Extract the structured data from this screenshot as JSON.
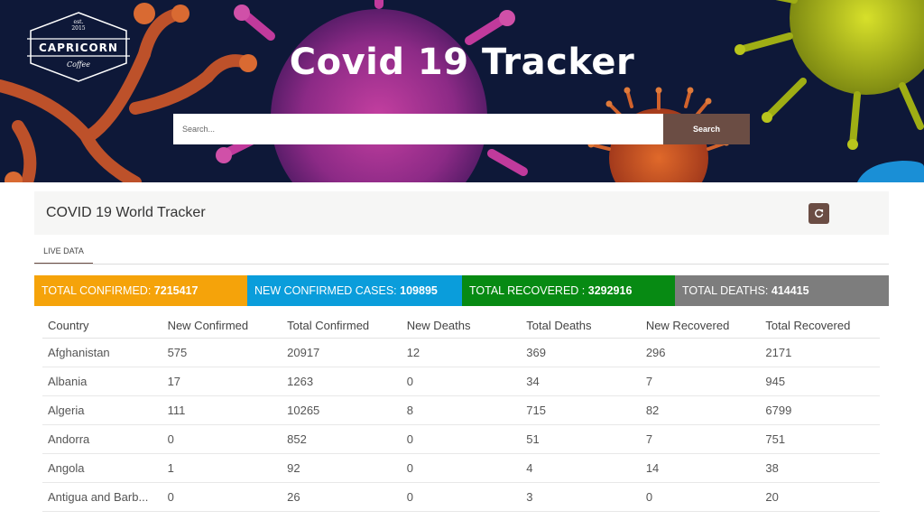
{
  "logo": {
    "est": "est.",
    "year": "2015",
    "name": "CAPRICORN",
    "sub": "Coffee"
  },
  "hero": {
    "title": "Covid 19 Tracker",
    "search_placeholder": "Search...",
    "search_button": "Search"
  },
  "card": {
    "title": "COVID 19 World Tracker",
    "tab_live": "LIVE DATA"
  },
  "stats": [
    {
      "label": "TOTAL CONFIRMED:",
      "value": "7215417",
      "color": "#f5a30a"
    },
    {
      "label": "NEW CONFIRMED CASES:",
      "value": "109895",
      "color": "#0a9ddb"
    },
    {
      "label": "TOTAL RECOVERED :",
      "value": "3292916",
      "color": "#078a13"
    },
    {
      "label": "TOTAL DEATHS:",
      "value": "414415",
      "color": "#7d7d7d"
    }
  ],
  "table": {
    "headers": [
      "Country",
      "New Confirmed",
      "Total Confirmed",
      "New Deaths",
      "Total Deaths",
      "New Recovered",
      "Total Recovered"
    ],
    "rows": [
      [
        "Afghanistan",
        "575",
        "20917",
        "12",
        "369",
        "296",
        "2171"
      ],
      [
        "Albania",
        "17",
        "1263",
        "0",
        "34",
        "7",
        "945"
      ],
      [
        "Algeria",
        "111",
        "10265",
        "8",
        "715",
        "82",
        "6799"
      ],
      [
        "Andorra",
        "0",
        "852",
        "0",
        "51",
        "7",
        "751"
      ],
      [
        "Angola",
        "1",
        "92",
        "0",
        "4",
        "14",
        "38"
      ],
      [
        "Antigua and Barb...",
        "0",
        "26",
        "0",
        "3",
        "0",
        "20"
      ]
    ]
  },
  "icons": {
    "refresh": "refresh-icon",
    "virus": "virus-icon"
  }
}
